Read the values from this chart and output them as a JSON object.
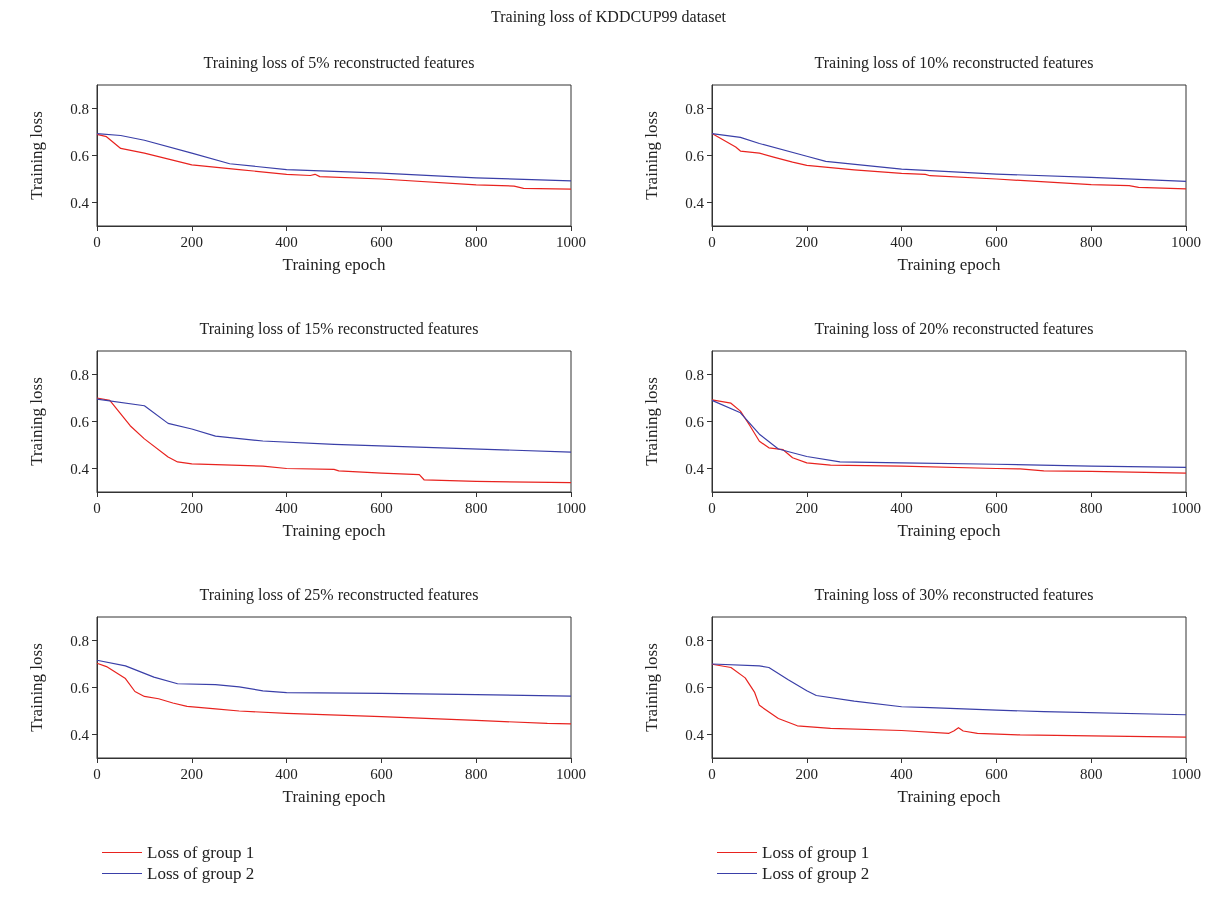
{
  "chart_data": [
    {
      "type": "line",
      "title": "Training loss of 5% reconstructed features",
      "annotations": [
        "Training loss of KDDCUP99 dataset"
      ],
      "xlabel": "Training epoch",
      "ylabel": "Training loss",
      "xlim": [
        0,
        1000
      ],
      "xticks": [
        0,
        200,
        400,
        600,
        800,
        1000
      ],
      "ylim": [
        0.3,
        0.9
      ],
      "yticks": [
        0.4,
        0.6,
        0.8
      ],
      "grid": false,
      "legend": false,
      "marker": "none",
      "line_style": "solid",
      "series": [
        {
          "color": "#e8231f",
          "x": [
            0,
            20,
            50,
            100,
            200,
            300,
            400,
            450,
            460,
            470,
            600,
            800,
            880,
            900,
            1000
          ],
          "values": [
            0.69,
            0.68,
            0.63,
            0.61,
            0.56,
            0.54,
            0.52,
            0.515,
            0.52,
            0.51,
            0.5,
            0.475,
            0.47,
            0.46,
            0.457
          ]
        },
        {
          "color": "#3a3fa8",
          "x": [
            0,
            50,
            100,
            200,
            280,
            400,
            600,
            800,
            1000
          ],
          "values": [
            0.693,
            0.685,
            0.665,
            0.61,
            0.565,
            0.54,
            0.525,
            0.505,
            0.492
          ]
        }
      ]
    },
    {
      "type": "line",
      "title": "Training loss of 10% reconstructed features",
      "xlabel": "Training epoch",
      "ylabel": "Training loss",
      "xlim": [
        0,
        1000
      ],
      "xticks": [
        0,
        200,
        400,
        600,
        800,
        1000
      ],
      "ylim": [
        0.3,
        0.9
      ],
      "yticks": [
        0.4,
        0.6,
        0.8
      ],
      "grid": false,
      "legend": false,
      "marker": "none",
      "line_style": "solid",
      "series": [
        {
          "color": "#e8231f",
          "x": [
            0,
            50,
            60,
            100,
            130,
            170,
            200,
            300,
            400,
            450,
            460,
            600,
            800,
            880,
            900,
            1000
          ],
          "values": [
            0.694,
            0.636,
            0.619,
            0.61,
            0.593,
            0.572,
            0.558,
            0.539,
            0.524,
            0.52,
            0.514,
            0.5,
            0.476,
            0.472,
            0.464,
            0.458
          ]
        },
        {
          "color": "#3a3fa8",
          "x": [
            0,
            60,
            100,
            200,
            240,
            400,
            600,
            800,
            1000
          ],
          "values": [
            0.693,
            0.677,
            0.651,
            0.597,
            0.575,
            0.542,
            0.521,
            0.507,
            0.49
          ]
        }
      ]
    },
    {
      "type": "line",
      "title": "Training loss of 15% reconstructed features",
      "xlabel": "Training epoch",
      "ylabel": "Training loss",
      "xlim": [
        0,
        1000
      ],
      "xticks": [
        0,
        200,
        400,
        600,
        800,
        1000
      ],
      "ylim": [
        0.3,
        0.9
      ],
      "yticks": [
        0.4,
        0.6,
        0.8
      ],
      "grid": false,
      "legend": false,
      "marker": "none",
      "line_style": "solid",
      "series": [
        {
          "color": "#e8231f",
          "x": [
            0,
            27,
            70,
            100,
            150,
            170,
            200,
            350,
            400,
            500,
            510,
            600,
            680,
            690,
            800,
            1000
          ],
          "values": [
            0.7,
            0.69,
            0.582,
            0.526,
            0.449,
            0.428,
            0.42,
            0.41,
            0.4,
            0.396,
            0.39,
            0.38,
            0.374,
            0.352,
            0.345,
            0.34
          ]
        },
        {
          "color": "#3a3fa8",
          "x": [
            0,
            100,
            150,
            200,
            250,
            350,
            500,
            1000
          ],
          "values": [
            0.695,
            0.667,
            0.592,
            0.568,
            0.538,
            0.517,
            0.503,
            0.47
          ]
        }
      ]
    },
    {
      "type": "line",
      "title": "Training loss of 20% reconstructed features",
      "xlabel": "Training epoch",
      "ylabel": "Training loss",
      "xlim": [
        0,
        1000
      ],
      "xticks": [
        0,
        200,
        400,
        600,
        800,
        1000
      ],
      "ylim": [
        0.3,
        0.9
      ],
      "yticks": [
        0.4,
        0.6,
        0.8
      ],
      "grid": false,
      "legend": false,
      "marker": "none",
      "line_style": "solid",
      "series": [
        {
          "color": "#e8231f",
          "x": [
            0,
            40,
            60,
            80,
            100,
            120,
            150,
            170,
            200,
            250,
            400,
            600,
            650,
            700,
            800,
            1000
          ],
          "values": [
            0.692,
            0.678,
            0.644,
            0.582,
            0.516,
            0.488,
            0.48,
            0.446,
            0.424,
            0.414,
            0.41,
            0.4,
            0.398,
            0.39,
            0.388,
            0.38
          ]
        },
        {
          "color": "#3a3fa8",
          "x": [
            0,
            60,
            100,
            140,
            200,
            270,
            400,
            600,
            800,
            1000
          ],
          "values": [
            0.69,
            0.637,
            0.546,
            0.483,
            0.451,
            0.428,
            0.424,
            0.418,
            0.41,
            0.405
          ]
        }
      ]
    },
    {
      "type": "line",
      "title": "Training loss of 25% reconstructed features",
      "xlabel": "Training epoch",
      "ylabel": "Training loss",
      "xlim": [
        0,
        1000
      ],
      "xticks": [
        0,
        200,
        400,
        600,
        800,
        1000
      ],
      "ylim": [
        0.3,
        0.9
      ],
      "yticks": [
        0.4,
        0.6,
        0.8
      ],
      "grid": false,
      "legend": "bottom",
      "marker": "none",
      "line_style": "solid",
      "series": [
        {
          "name": "Loss of group 1",
          "color": "#e8231f",
          "x": [
            0,
            20,
            60,
            80,
            100,
            130,
            160,
            190,
            250,
            300,
            400,
            600,
            800,
            950,
            1000
          ],
          "values": [
            0.703,
            0.689,
            0.638,
            0.583,
            0.562,
            0.552,
            0.534,
            0.52,
            0.509,
            0.5,
            0.49,
            0.476,
            0.46,
            0.447,
            0.445
          ]
        },
        {
          "name": "Loss of group 2",
          "color": "#3a3fa8",
          "x": [
            0,
            60,
            120,
            170,
            250,
            300,
            350,
            400,
            600,
            800,
            1000
          ],
          "values": [
            0.716,
            0.692,
            0.644,
            0.616,
            0.612,
            0.603,
            0.586,
            0.578,
            0.575,
            0.57,
            0.563
          ]
        }
      ]
    },
    {
      "type": "line",
      "title": "Training loss of 30% reconstructed features",
      "xlabel": "Training epoch",
      "ylabel": "Training loss",
      "xlim": [
        0,
        1000
      ],
      "xticks": [
        0,
        200,
        400,
        600,
        800,
        1000
      ],
      "ylim": [
        0.3,
        0.9
      ],
      "yticks": [
        0.4,
        0.6,
        0.8
      ],
      "grid": false,
      "legend": "bottom",
      "marker": "none",
      "line_style": "solid",
      "series": [
        {
          "name": "Loss of group 1",
          "color": "#e8231f",
          "x": [
            0,
            40,
            70,
            90,
            100,
            140,
            180,
            250,
            400,
            500,
            510,
            520,
            530,
            560,
            650,
            800,
            1000
          ],
          "values": [
            0.699,
            0.685,
            0.641,
            0.579,
            0.524,
            0.468,
            0.437,
            0.426,
            0.417,
            0.405,
            0.415,
            0.429,
            0.415,
            0.405,
            0.398,
            0.394,
            0.389
          ]
        },
        {
          "name": "Loss of group 2",
          "color": "#3a3fa8",
          "x": [
            0,
            100,
            120,
            160,
            200,
            220,
            300,
            400,
            460,
            600,
            700,
            1000
          ],
          "values": [
            0.7,
            0.692,
            0.685,
            0.634,
            0.586,
            0.566,
            0.542,
            0.518,
            0.514,
            0.504,
            0.497,
            0.484
          ]
        }
      ]
    }
  ]
}
